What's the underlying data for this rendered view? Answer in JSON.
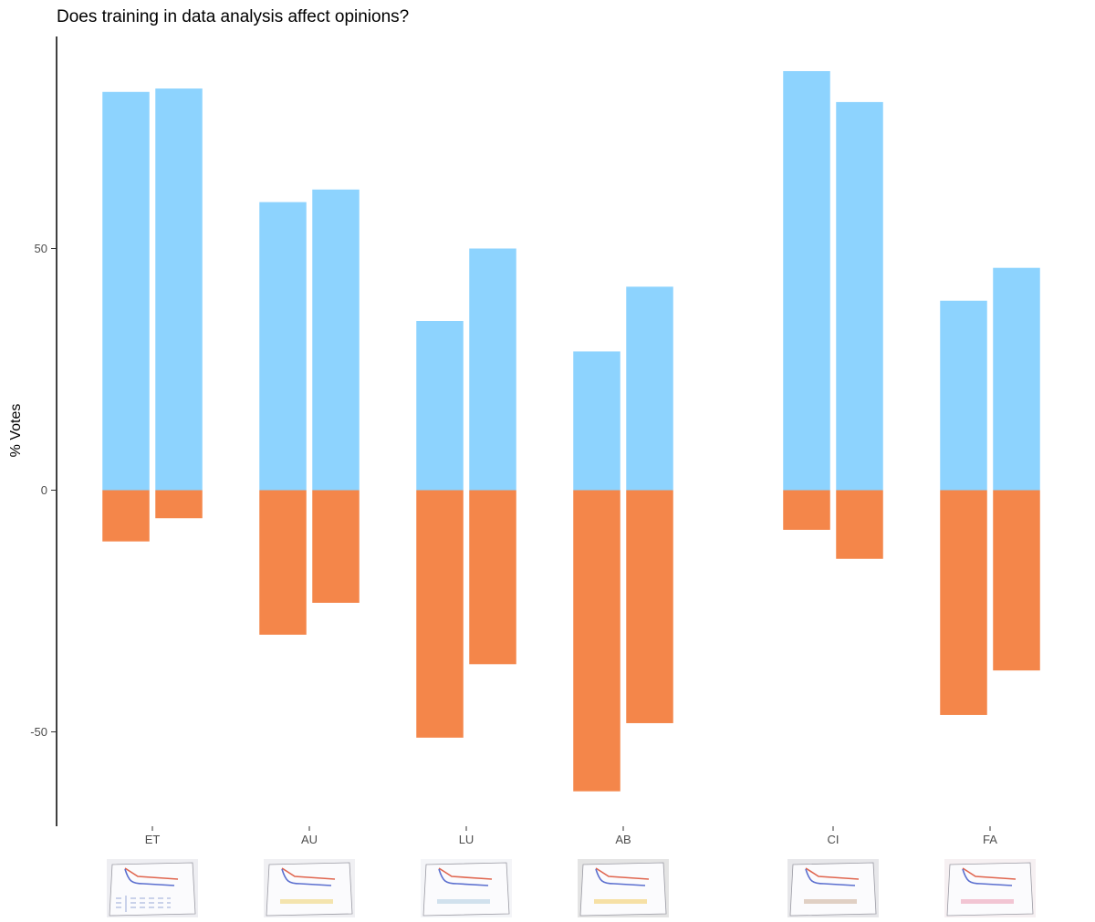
{
  "chart_data": {
    "type": "bar",
    "title": "Does training in data analysis affect opinions?",
    "xlabel": "",
    "ylabel": "% Votes",
    "ylim": [
      -68,
      94
    ],
    "yticks": [
      -50,
      0,
      50
    ],
    "grid": false,
    "legend": "none",
    "colors": {
      "positive": "#8dd3fe",
      "negative": "#f4864a",
      "axis": "#000000"
    },
    "categories": [
      "ET",
      "AU",
      "LU",
      "AB",
      "CI",
      "FA"
    ],
    "series": [
      {
        "values": [
          82.4,
          59.6,
          35.0,
          28.7,
          86.7,
          39.2
        ]
      },
      {
        "values": [
          83.1,
          62.2,
          50.0,
          42.1,
          80.3,
          46.0
        ]
      },
      {
        "values": [
          -10.6,
          -29.9,
          -51.2,
          -62.3,
          -8.2,
          -46.5
        ]
      },
      {
        "values": [
          -5.8,
          -23.3,
          -36.0,
          -48.2,
          -14.2,
          -37.3
        ]
      }
    ],
    "thumbnails": [
      {
        "category": "ET",
        "tone": "#eeeef2",
        "accent": "#9aa8d8",
        "table": true
      },
      {
        "category": "AU",
        "tone": "#f0f0f3",
        "accent": "#f3df9a",
        "table": false
      },
      {
        "category": "LU",
        "tone": "#f4f5f8",
        "accent": "#c7dbe8",
        "table": false
      },
      {
        "category": "AB",
        "tone": "#e4e4e4",
        "accent": "#f5d98e",
        "table": false
      },
      {
        "category": "CI",
        "tone": "#e7e7ea",
        "accent": "#d9c5b5",
        "table": false
      },
      {
        "category": "FA",
        "tone": "#f6f0f2",
        "accent": "#f0b8c8",
        "table": false
      }
    ]
  }
}
